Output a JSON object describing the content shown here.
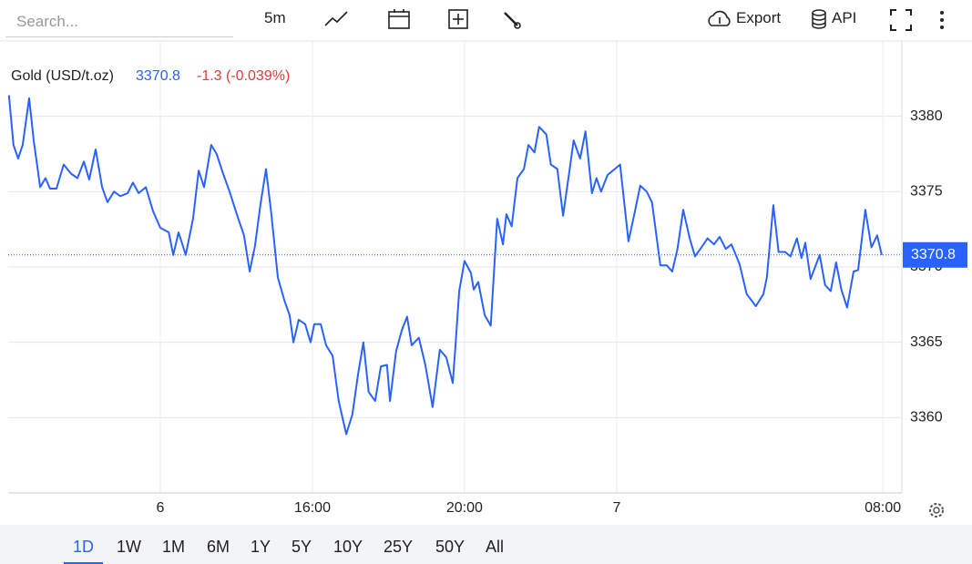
{
  "toolbar": {
    "search_placeholder": "Search...",
    "interval": "5m",
    "export": "Export",
    "api": "API"
  },
  "ranges": {
    "items": [
      "1D",
      "1W",
      "1M",
      "6M",
      "1Y",
      "5Y",
      "10Y",
      "25Y",
      "50Y",
      "All"
    ],
    "selected": "1D"
  },
  "chart_data": {
    "type": "line",
    "change": "-1.3 (-0.039%)",
    "last_price": 3370.8,
    "x": [
      8.02,
      8.14,
      8.26,
      8.38,
      8.55,
      8.67,
      8.84,
      8.98,
      9.1,
      9.27,
      9.46,
      9.65,
      9.82,
      9.99,
      10.13,
      10.3,
      10.47,
      10.61,
      10.78,
      10.95,
      11.14,
      11.28,
      11.43,
      11.62,
      11.81,
      12.0,
      12.22,
      12.34,
      12.48,
      12.67,
      12.86,
      13.01,
      13.15,
      13.34,
      13.48,
      13.65,
      13.82,
      14.01,
      14.2,
      14.35,
      14.49,
      14.63,
      14.78,
      14.92,
      15.09,
      15.26,
      15.4,
      15.5,
      15.64,
      15.81,
      15.95,
      16.05,
      16.22,
      16.36,
      16.53,
      16.69,
      16.89,
      17.05,
      17.2,
      17.34,
      17.48,
      17.65,
      17.8,
      17.96,
      18.04,
      18.2,
      18.35,
      18.49,
      18.61,
      18.8,
      18.97,
      19.16,
      19.35,
      19.52,
      19.69,
      19.76,
      19.86,
      20.0,
      20.17,
      20.24,
      20.36,
      20.53,
      20.69,
      20.86,
      21.01,
      21.1,
      21.24,
      21.39,
      21.56,
      21.68,
      21.84,
      21.96,
      22.15,
      22.27,
      22.44,
      22.59,
      22.75,
      22.87,
      23.04,
      23.18,
      23.35,
      23.47,
      23.59,
      23.76,
      23.95,
      24.09,
      24.31,
      24.48,
      24.62,
      24.79,
      24.93,
      25.15,
      25.32,
      25.46,
      25.6,
      25.75,
      25.92,
      26.06,
      26.23,
      26.39,
      26.56,
      26.71,
      26.87,
      27.02,
      27.23,
      27.42,
      27.66,
      27.86,
      27.95,
      28.12,
      28.26,
      28.43,
      28.57,
      28.74,
      28.86,
      28.96,
      29.1,
      29.22,
      29.34,
      29.48,
      29.63,
      29.77,
      29.91,
      30.06,
      30.23,
      30.35,
      30.54,
      30.7,
      30.85,
      30.97
    ],
    "series": [
      {
        "name": "Gold (USD/t.oz)",
        "color": "#2962ff",
        "values": [
          3381.4,
          3378.1,
          3377.2,
          3378.1,
          3381.2,
          3378.4,
          3375.3,
          3375.9,
          3375.2,
          3375.2,
          3376.8,
          3376.2,
          3375.9,
          3377.0,
          3375.8,
          3377.8,
          3375.3,
          3374.3,
          3375.0,
          3374.7,
          3374.9,
          3375.6,
          3374.9,
          3375.3,
          3373.7,
          3372.6,
          3372.3,
          3370.8,
          3372.3,
          3370.8,
          3373.2,
          3376.4,
          3375.3,
          3378.1,
          3377.5,
          3376.2,
          3375.0,
          3373.5,
          3372.1,
          3369.7,
          3371.4,
          3374.1,
          3376.5,
          3373.5,
          3369.3,
          3367.8,
          3366.8,
          3365.0,
          3366.5,
          3366.2,
          3365.0,
          3366.2,
          3366.2,
          3364.8,
          3364.1,
          3361.1,
          3358.9,
          3360.2,
          3362.9,
          3365.0,
          3361.7,
          3361.1,
          3363.4,
          3363.5,
          3361.1,
          3364.4,
          3365.8,
          3366.7,
          3364.8,
          3365.3,
          3363.5,
          3360.7,
          3364.5,
          3364.0,
          3362.3,
          3364.7,
          3368.4,
          3370.4,
          3369.6,
          3368.5,
          3369.0,
          3366.8,
          3366.1,
          3373.2,
          3371.5,
          3373.5,
          3372.7,
          3375.9,
          3376.5,
          3378.1,
          3377.6,
          3379.3,
          3378.8,
          3376.8,
          3376.5,
          3373.4,
          3376.2,
          3378.4,
          3377.2,
          3379.0,
          3374.9,
          3375.9,
          3375.0,
          3376.1,
          3376.5,
          3376.8,
          3371.7,
          3373.7,
          3375.4,
          3375.0,
          3374.3,
          3370.1,
          3370.1,
          3369.7,
          3371.2,
          3373.8,
          3371.9,
          3370.7,
          3371.3,
          3371.9,
          3371.5,
          3372.0,
          3371.2,
          3371.5,
          3370.2,
          3368.2,
          3367.4,
          3368.2,
          3369.3,
          3374.1,
          3371.0,
          3371.0,
          3370.7,
          3371.9,
          3370.6,
          3371.6,
          3369.2,
          3370.0,
          3370.8,
          3368.8,
          3368.4,
          3370.3,
          3368.5,
          3367.3,
          3369.7,
          3369.8,
          3373.8,
          3371.3,
          3372.1,
          3370.8
        ]
      }
    ],
    "xlim": [
      8,
      31.5
    ],
    "xticks": [
      {
        "value": 12,
        "label": "6"
      },
      {
        "value": 16,
        "label": "16:00"
      },
      {
        "value": 20,
        "label": "20:00"
      },
      {
        "value": 24,
        "label": "7"
      },
      {
        "value": 31,
        "label": "08:00"
      }
    ],
    "ylim": [
      3355,
      3385
    ],
    "yticks": [
      3360,
      3365,
      3370,
      3375,
      3380
    ],
    "grid": true
  }
}
